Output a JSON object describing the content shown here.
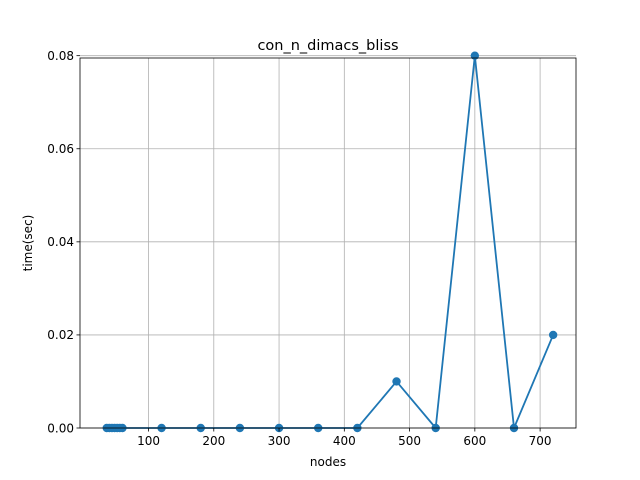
{
  "chart_data": {
    "type": "line",
    "title": "con_n_dimacs_bliss",
    "xlabel": "nodes",
    "ylabel": "time(sec)",
    "xlim": [
      -5,
      755
    ],
    "ylim": [
      0,
      0.0795
    ],
    "xticks": [
      100,
      200,
      300,
      400,
      500,
      600,
      700
    ],
    "yticks": [
      0.0,
      0.02,
      0.04,
      0.06,
      0.08
    ],
    "ytick_labels": [
      "0.00",
      "0.02",
      "0.04",
      "0.06",
      "0.08"
    ],
    "grid": true,
    "series": [
      {
        "color": "#1f77b4",
        "x": [
          36,
          40,
          44,
          48,
          52,
          56,
          60,
          120,
          180,
          240,
          300,
          360,
          420,
          480,
          540,
          600,
          660,
          720
        ],
        "y": [
          0,
          0,
          0,
          0,
          0,
          0,
          0,
          0,
          0,
          0,
          0,
          0,
          0,
          0.01,
          0,
          0.08,
          0,
          0.02
        ]
      }
    ]
  }
}
